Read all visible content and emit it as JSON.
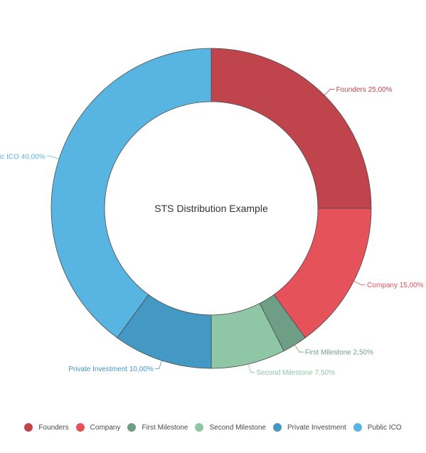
{
  "chart_data": {
    "type": "pie",
    "title": "STS Distribution Example",
    "categories": [
      "Founders",
      "Company",
      "First Milestone",
      "Second Milestone",
      "Private Investment",
      "Public ICO"
    ],
    "values": [
      25.0,
      15.0,
      2.5,
      7.5,
      10.0,
      40.0
    ],
    "value_labels": [
      "25,00%",
      "15,00%",
      "2,50%",
      "7,50%",
      "10,00%",
      "40,00%"
    ],
    "colors": [
      "#c0444b",
      "#e5525a",
      "#6e9e86",
      "#8ec6a6",
      "#4499c4",
      "#58b5e2"
    ],
    "label_colors": [
      "#c0444b",
      "#e5525a",
      "#6e9e86",
      "#8ec6a6",
      "#4499c4",
      "#58b5e2"
    ],
    "donut": true,
    "legend_position": "bottom"
  },
  "legend": {
    "items": [
      {
        "label": "Founders",
        "color": "#c0444b"
      },
      {
        "label": "Company",
        "color": "#e5525a"
      },
      {
        "label": "First Milestone",
        "color": "#6e9e86"
      },
      {
        "label": "Second Milestone",
        "color": "#8ec6a6"
      },
      {
        "label": "Private Investment",
        "color": "#4499c4"
      },
      {
        "label": "Public ICO",
        "color": "#58b5e2"
      }
    ]
  }
}
